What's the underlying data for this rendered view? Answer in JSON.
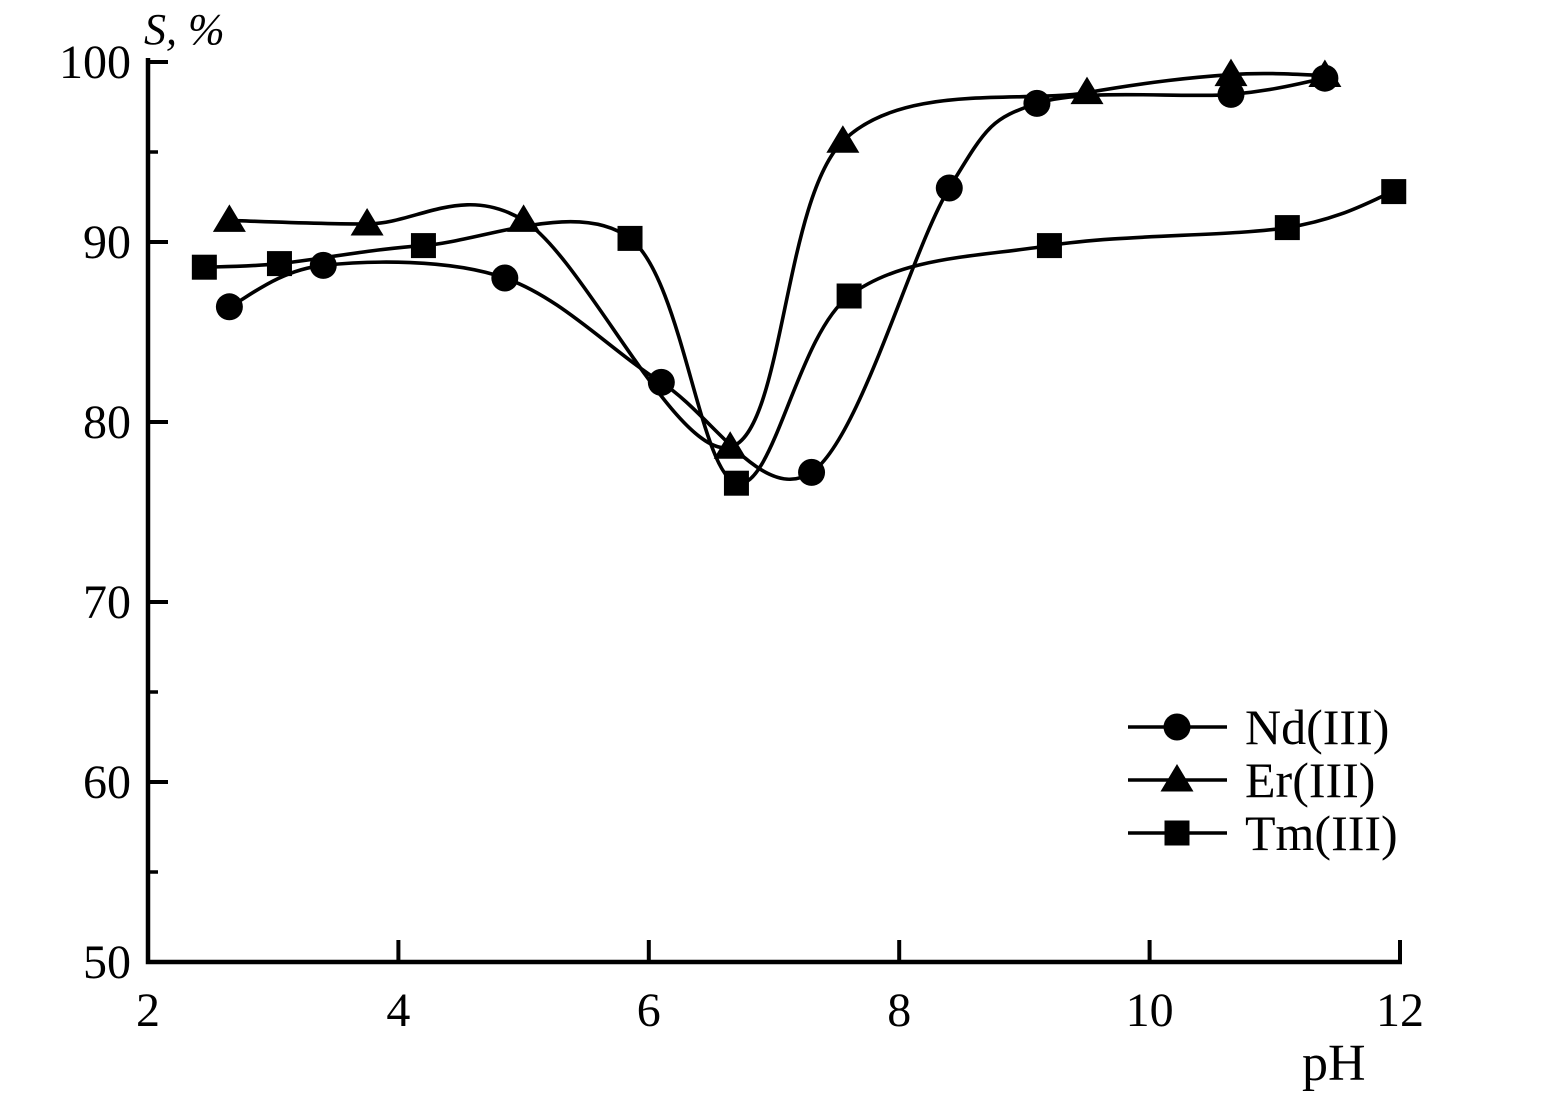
{
  "figure": {
    "background": "#ffffff",
    "ink_color": "#000000"
  },
  "chart_data": {
    "type": "line",
    "title": "",
    "ylabel": "S, %",
    "xlabel": "pH",
    "xlim": [
      2,
      12
    ],
    "ylim": [
      50,
      100
    ],
    "x_ticks": [
      2,
      4,
      6,
      8,
      10,
      12
    ],
    "y_ticks": [
      50,
      60,
      70,
      80,
      90,
      100
    ],
    "y_minor_ticks": [
      55,
      65,
      95
    ],
    "grid": false,
    "legend_position": "inside-right-middle",
    "series": [
      {
        "name": "Nd(III)",
        "marker": "circle",
        "x": [
          2.65,
          3.4,
          4.85,
          6.1,
          7.3,
          8.4,
          9.1,
          10.65,
          11.4
        ],
        "y": [
          86.4,
          88.7,
          88.0,
          82.2,
          77.2,
          93.0,
          97.7,
          98.2,
          99.1
        ]
      },
      {
        "name": "Er(III)",
        "marker": "triangle",
        "x": [
          2.65,
          3.75,
          5.0,
          6.65,
          7.55,
          9.5,
          10.65,
          11.4
        ],
        "y": [
          91.2,
          91.0,
          91.2,
          78.6,
          95.6,
          98.3,
          99.3,
          99.25
        ]
      },
      {
        "name": "Tm(III)",
        "marker": "square",
        "x": [
          2.45,
          3.05,
          4.2,
          5.85,
          6.7,
          7.6,
          9.2,
          11.1,
          11.95
        ],
        "y": [
          88.6,
          88.8,
          89.8,
          90.2,
          76.6,
          87.0,
          89.8,
          90.8,
          92.8
        ]
      }
    ]
  }
}
